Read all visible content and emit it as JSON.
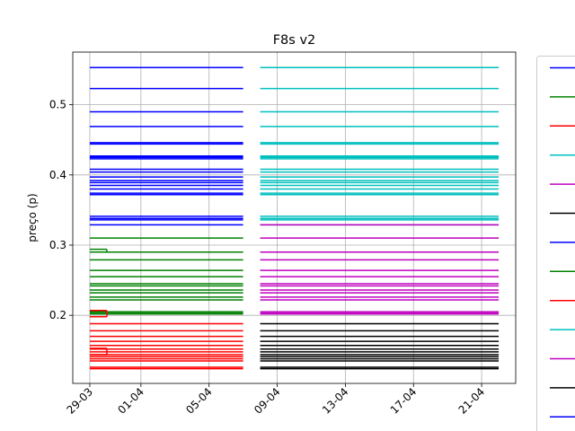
{
  "chart_data": {
    "type": "line",
    "title": "F8s v2",
    "xlabel": "",
    "ylabel": "preço (p)",
    "x_tick_labels": [
      "29-03",
      "01-04",
      "05-04",
      "09-04",
      "13-04",
      "17-04",
      "21-04"
    ],
    "x_tick_dates": [
      "2020-03-29",
      "2020-04-01",
      "2020-04-05",
      "2020-04-09",
      "2020-04-13",
      "2020-04-17",
      "2020-04-21"
    ],
    "x_range": [
      "2020-03-28",
      "2020-04-23"
    ],
    "y_tick_labels": [
      "0.2",
      "0.3",
      "0.4",
      "0.5"
    ],
    "y_ticks": [
      0.2,
      0.3,
      0.4,
      0.5
    ],
    "ylim": [
      0.103,
      0.575
    ],
    "grid": true,
    "legend_placement": "right, partially cut off",
    "legend_colors": [
      "#0000ff",
      "#008000",
      "#ff0000",
      "#00bfbf",
      "#bf00bf",
      "#000000",
      "#0000ff",
      "#008000",
      "#ff0000",
      "#00bfbf",
      "#bf00bf",
      "#000000",
      "#0000ff"
    ],
    "segments": [
      {
        "color": "#0000ff",
        "x_start": "2020-03-29",
        "x_end": "2020-04-07",
        "y_values": [
          0.553,
          0.523,
          0.49,
          0.469,
          0.446,
          0.444,
          0.427,
          0.425,
          0.423,
          0.408,
          0.404,
          0.397,
          0.392,
          0.389,
          0.385,
          0.38,
          0.374,
          0.372,
          0.341,
          0.338,
          0.336,
          0.329
        ]
      },
      {
        "color": "#00bfbf",
        "x_start": "2020-04-08",
        "x_end": "2020-04-22",
        "y_values": [
          0.553,
          0.523,
          0.49,
          0.469,
          0.446,
          0.444,
          0.427,
          0.425,
          0.423,
          0.408,
          0.404,
          0.397,
          0.392,
          0.389,
          0.385,
          0.38,
          0.374,
          0.372,
          0.341,
          0.338,
          0.336,
          0.329
        ]
      },
      {
        "color": "#008000",
        "x_start": "2020-03-29",
        "x_end": "2020-04-07",
        "y_values": [
          0.31,
          0.29,
          0.279,
          0.264,
          0.255,
          0.245,
          0.242,
          0.236,
          0.232,
          0.226,
          0.222,
          0.205,
          0.203,
          0.202
        ]
      },
      {
        "color": "#bf00bf",
        "x_start": "2020-04-08",
        "x_end": "2020-04-22",
        "y_values": [
          0.329,
          0.31,
          0.29,
          0.279,
          0.264,
          0.255,
          0.245,
          0.242,
          0.236,
          0.232,
          0.226,
          0.222,
          0.205,
          0.203,
          0.202
        ]
      },
      {
        "color": "#ff0000",
        "x_start": "2020-03-29",
        "x_end": "2020-04-07",
        "y_values": [
          0.188,
          0.178,
          0.17,
          0.163,
          0.157,
          0.152,
          0.148,
          0.144,
          0.141,
          0.138,
          0.135,
          0.126,
          0.124
        ]
      },
      {
        "color": "#000000",
        "x_start": "2020-04-08",
        "x_end": "2020-04-22",
        "y_values": [
          0.188,
          0.178,
          0.17,
          0.163,
          0.157,
          0.152,
          0.148,
          0.144,
          0.141,
          0.138,
          0.135,
          0.126,
          0.124
        ]
      },
      {
        "color": "#008000",
        "x_start": "2020-03-29",
        "x_end": "2020-03-30",
        "y_values": [
          0.294
        ]
      },
      {
        "color": "#ff0000",
        "x_start": "2020-03-29",
        "x_end": "2020-03-30",
        "y_values": [
          0.207,
          0.198,
          0.153,
          0.144
        ]
      }
    ],
    "steps": [
      {
        "color": "#008000",
        "x": "2020-03-30",
        "y_from": 0.294,
        "y_to": 0.29
      },
      {
        "color": "#ff0000",
        "x": "2020-03-30",
        "y_from": 0.207,
        "y_to": 0.198
      },
      {
        "color": "#ff0000",
        "x": "2020-03-30",
        "y_from": 0.153,
        "y_to": 0.144
      }
    ]
  }
}
